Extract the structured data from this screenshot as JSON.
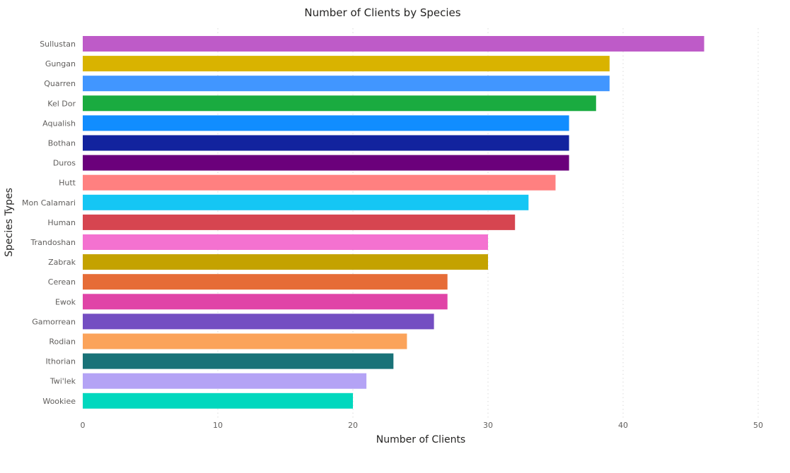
{
  "chart_data": {
    "type": "bar",
    "orientation": "horizontal",
    "title": "Number of Clients by Species",
    "xlabel": "Number of Clients",
    "ylabel": "Species Types",
    "xlim": [
      0,
      50
    ],
    "xticks": [
      "0",
      "10",
      "20",
      "30",
      "40",
      "50"
    ],
    "grid": true,
    "categories": [
      "Sullustan",
      "Gungan",
      "Quarren",
      "Kel Dor",
      "Aqualish",
      "Bothan",
      "Duros",
      "Hutt",
      "Mon Calamari",
      "Human",
      "Trandoshan",
      "Zabrak",
      "Cerean",
      "Ewok",
      "Gamorrean",
      "Rodian",
      "Ithorian",
      "Twi'lek",
      "Wookiee"
    ],
    "values": [
      46,
      39,
      39,
      38,
      36,
      36,
      36,
      35,
      33,
      32,
      30,
      30,
      27,
      27,
      26,
      24,
      23,
      21,
      20
    ],
    "colors": [
      "#BE5BC8",
      "#D9B300",
      "#4196FF",
      "#1AAB40",
      "#118DFF",
      "#12239E",
      "#6B007B",
      "#FF8080",
      "#15C6F4",
      "#D64550",
      "#F472D0",
      "#C4A200",
      "#E66C37",
      "#E044A7",
      "#744EC2",
      "#FBA35A",
      "#197278",
      "#B4A3F5",
      "#01D8BE"
    ]
  }
}
